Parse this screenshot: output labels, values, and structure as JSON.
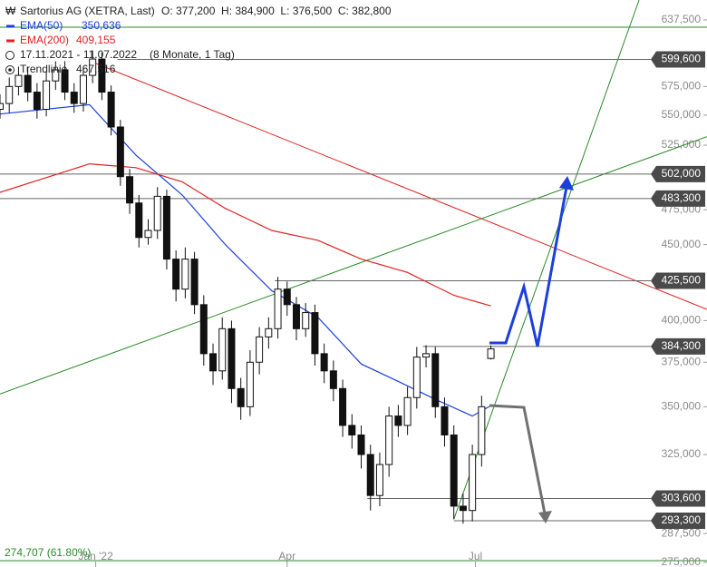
{
  "chart_data": {
    "type": "candlestick",
    "title": "Sartorius AG (XETRA, Last)",
    "ohlc_text": "O: 377,200  H: 384,900  L: 376,500  C: 382,800",
    "period": "17.11.2021 - 11.07.2022",
    "period_note": "(8 Monate, 1 Tag)",
    "trend_name": "Trendlinie",
    "trend_value": "467,516",
    "fib_label": "274,707 (61.80%)",
    "log_scale": true,
    "xlim": [
      0,
      229
    ],
    "xticks": [
      {
        "value": 31,
        "label": "Jan '22"
      },
      {
        "value": 93,
        "label": "Apr"
      },
      {
        "value": 154,
        "label": "Jul"
      }
    ],
    "ylim": [
      273,
      657.5
    ],
    "yticks": [
      {
        "value": 637.5,
        "label": "637,500"
      },
      {
        "value": 575,
        "label": "575,000"
      },
      {
        "value": 550,
        "label": "550,000"
      },
      {
        "value": 525,
        "label": "525,000"
      },
      {
        "value": 475,
        "label": "475,000"
      },
      {
        "value": 450,
        "label": "450,000"
      },
      {
        "value": 400,
        "label": "400,000"
      },
      {
        "value": 375,
        "label": "375,000"
      },
      {
        "value": 350,
        "label": "350,000"
      },
      {
        "value": 325,
        "label": "325,000"
      },
      {
        "value": 287.5,
        "label": "287,500"
      },
      {
        "value": 275,
        "label": "275,000"
      }
    ],
    "candles": {
      "x": [
        0,
        3,
        6,
        9,
        12,
        15,
        18,
        21,
        24,
        27,
        30,
        33,
        36,
        39,
        42,
        45,
        48,
        51,
        54,
        57,
        60,
        63,
        66,
        69,
        72,
        75,
        78,
        81,
        84,
        87,
        90,
        93,
        96,
        99,
        102,
        105,
        108,
        111,
        114,
        117,
        120,
        123,
        126,
        129,
        132,
        135,
        138,
        141,
        144,
        147,
        150,
        153,
        156,
        159
      ],
      "open": [
        555,
        560,
        575,
        585,
        570,
        555,
        580,
        590,
        570,
        560,
        585,
        600,
        570,
        540,
        500,
        480,
        455,
        460,
        485,
        440,
        420,
        440,
        410,
        380,
        370,
        395,
        360,
        350,
        375,
        390,
        395,
        420,
        410,
        395,
        405,
        380,
        370,
        360,
        340,
        335,
        325,
        305,
        320,
        345,
        340,
        355,
        378,
        380,
        350,
        335,
        300,
        298,
        325,
        377.2
      ],
      "high": [
        568,
        583,
        593,
        593,
        578,
        588,
        598,
        598,
        578,
        593,
        608,
        606,
        576,
        546,
        506,
        486,
        468,
        492,
        490,
        446,
        448,
        445,
        416,
        386,
        402,
        400,
        366,
        382,
        396,
        402,
        428,
        425,
        415,
        411,
        410,
        386,
        376,
        365,
        346,
        340,
        330,
        326,
        350,
        351,
        361,
        384,
        385,
        384,
        355,
        340,
        306,
        330,
        356,
        384.9
      ],
      "low": [
        547,
        552,
        567,
        562,
        547,
        549,
        572,
        563,
        552,
        553,
        578,
        563,
        533,
        493,
        472,
        448,
        450,
        454,
        433,
        412,
        414,
        404,
        373,
        362,
        365,
        352,
        343,
        345,
        368,
        383,
        389,
        403,
        388,
        390,
        373,
        363,
        353,
        334,
        328,
        318,
        298,
        300,
        314,
        334,
        335,
        349,
        372,
        344,
        329,
        294,
        292,
        293,
        319,
        376.5
      ],
      "close": [
        560,
        575,
        585,
        570,
        555,
        580,
        590,
        570,
        560,
        585,
        600,
        570,
        540,
        500,
        480,
        455,
        460,
        485,
        440,
        420,
        440,
        410,
        380,
        370,
        395,
        360,
        350,
        375,
        390,
        395,
        420,
        410,
        395,
        405,
        380,
        370,
        360,
        340,
        335,
        325,
        305,
        320,
        345,
        340,
        355,
        378,
        380,
        350,
        335,
        300,
        298,
        325,
        350,
        382.8
      ]
    },
    "series": [
      {
        "name": "EMA(50)",
        "color": "#1c3fdc",
        "value_label": "350,636",
        "x": [
          0,
          29,
          44,
          59,
          73,
          88,
          103,
          117,
          129,
          141,
          153,
          159
        ],
        "values": [
          551,
          559,
          517,
          486,
          450,
          419,
          402,
          374,
          364,
          354,
          345,
          350.6
        ]
      },
      {
        "name": "EMA(200)",
        "color": "#e02020",
        "value_label": "409,155",
        "x": [
          0,
          29,
          44,
          59,
          73,
          88,
          103,
          117,
          132,
          147,
          159
        ],
        "values": [
          488,
          510,
          507,
          496,
          476,
          460,
          453,
          440,
          431,
          416,
          409.2
        ]
      }
    ],
    "trendlines": [
      {
        "color": "#e02020",
        "x": [
          31,
          229
        ],
        "values": [
          596,
          407
        ]
      },
      {
        "color": "#2a8a2a",
        "x": [
          0,
          229
        ],
        "values": [
          357,
          532
        ]
      },
      {
        "color": "#2a8a2a",
        "x": [
          147,
          207
        ],
        "values": [
          294,
          657.5
        ]
      }
    ],
    "levels": [
      {
        "value": 599.6,
        "label": "599,600",
        "start": 38
      },
      {
        "value": 502,
        "label": "502,000",
        "start": 0
      },
      {
        "value": 483.3,
        "label": "483,300",
        "start": 0
      },
      {
        "value": 425.5,
        "label": "425,500",
        "start": 89
      },
      {
        "value": 384.3,
        "label": "384,300",
        "start": 137
      },
      {
        "value": 303.6,
        "label": "303,600",
        "start": 119
      },
      {
        "value": 293.3,
        "label": "293,300",
        "start": 147
      }
    ]
  }
}
